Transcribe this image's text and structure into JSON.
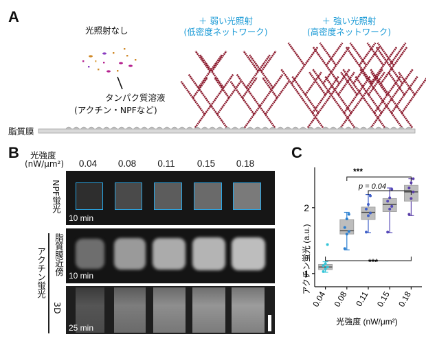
{
  "panel_a": {
    "label": "A",
    "no_light": "光照射なし",
    "weak_title": "＋ 弱い光照射",
    "weak_sub": "(低密度ネットワーク)",
    "strong_title": "＋ 強い光照射",
    "strong_sub": "(高密度ネットワーク)",
    "solution_line1": "タンパク質溶液",
    "solution_line2": "(アクチン・NPFなど)",
    "membrane": "脂質膜",
    "colors": {
      "filament": "#8c1b2e",
      "title": "#1a9ad6",
      "membrane": "#c8c8c8"
    }
  },
  "panel_b": {
    "label": "B",
    "intensity_title": "光強度",
    "intensity_unit": "(nW/μm²)",
    "concentrations": [
      "0.04",
      "0.08",
      "0.11",
      "0.15",
      "0.18"
    ],
    "row_npf": "NPF蛍光",
    "group_actin": "アクチン蛍光",
    "row_near": "脂質膜近傍",
    "row_3d": "3D",
    "time_npf": "10 min",
    "time_near": "10 min",
    "time_3d": "25 min",
    "colors": {
      "roi": "#2aa8e8"
    }
  },
  "panel_c": {
    "label": "C",
    "sig_top": "***",
    "sig_mid": "p = 0.04",
    "sig_bottom": "***"
  },
  "chart_data": {
    "type": "box",
    "categories": [
      "0.04",
      "0.08",
      "0.11",
      "0.15",
      "0.18"
    ],
    "xlabel": "光強度 (nW/μm²)",
    "ylabel": "アクチン蛍光 (a.u.)",
    "yticks": [
      1,
      2
    ],
    "ylim": [
      0.8,
      2.55
    ],
    "series": [
      {
        "category": "0.04",
        "q1": 1.06,
        "median": 1.1,
        "q3": 1.14,
        "min": 1.02,
        "max": 1.18,
        "color": "#35c5d8",
        "points": [
          1.03,
          1.07,
          1.1,
          1.12,
          1.15,
          1.44
        ]
      },
      {
        "category": "0.08",
        "q1": 1.6,
        "median": 1.65,
        "q3": 1.82,
        "min": 1.36,
        "max": 1.93,
        "color": "#2a7fd0",
        "points": [
          1.38,
          1.6,
          1.64,
          1.7,
          1.83,
          1.9
        ]
      },
      {
        "category": "0.11",
        "q1": 1.82,
        "median": 1.93,
        "q3": 2.01,
        "min": 1.62,
        "max": 2.2,
        "color": "#4060c8",
        "points": [
          1.63,
          1.88,
          1.92,
          1.98,
          2.05,
          2.18
        ]
      },
      {
        "category": "0.15",
        "q1": 1.94,
        "median": 2.05,
        "q3": 2.14,
        "min": 1.62,
        "max": 2.3,
        "color": "#5548b8",
        "points": [
          1.63,
          1.98,
          2.02,
          2.1,
          2.15,
          2.28
        ]
      },
      {
        "category": "0.18",
        "q1": 2.1,
        "median": 2.24,
        "q3": 2.34,
        "min": 1.88,
        "max": 2.44,
        "color": "#5a3ea8",
        "points": [
          1.9,
          2.14,
          2.24,
          2.3,
          2.38,
          2.44
        ]
      }
    ]
  }
}
